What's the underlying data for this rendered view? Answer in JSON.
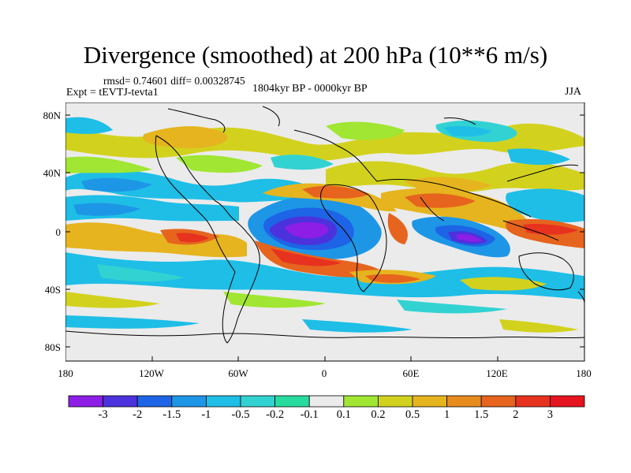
{
  "header": {
    "title": "Divergence (smoothed) at 200 hPa (10**6 m/s)",
    "stats": "rmsd= 0.74601 diff= 0.00328745",
    "experiment": "Expt = tEVTJ-tevta1",
    "period": "1804kyr BP - 0000kyr BP",
    "season": "JJA"
  },
  "axes": {
    "lat_ticks": [
      "80N",
      "40N",
      "0",
      "40S",
      "80S"
    ],
    "lon_ticks": [
      "180",
      "120W",
      "60W",
      "0",
      "60E",
      "120E",
      "180"
    ]
  },
  "colorbar": {
    "labels": [
      "-3",
      "-2",
      "-1.5",
      "-1",
      "-0.5",
      "-0.2",
      "-0.1",
      "0.1",
      "0.2",
      "0.5",
      "1",
      "1.5",
      "2",
      "3"
    ],
    "colors": [
      "#8c1ee6",
      "#4b32dc",
      "#1e64e6",
      "#1e96e6",
      "#1ebee6",
      "#32d2d2",
      "#28dca0",
      "#ebebeb",
      "#a0e632",
      "#d2d21e",
      "#e6b41e",
      "#e68c1e",
      "#e6641e",
      "#e6321e",
      "#e6141e"
    ]
  },
  "map": {
    "background_color": "#ebebeb",
    "coastline_color": "#000000"
  }
}
